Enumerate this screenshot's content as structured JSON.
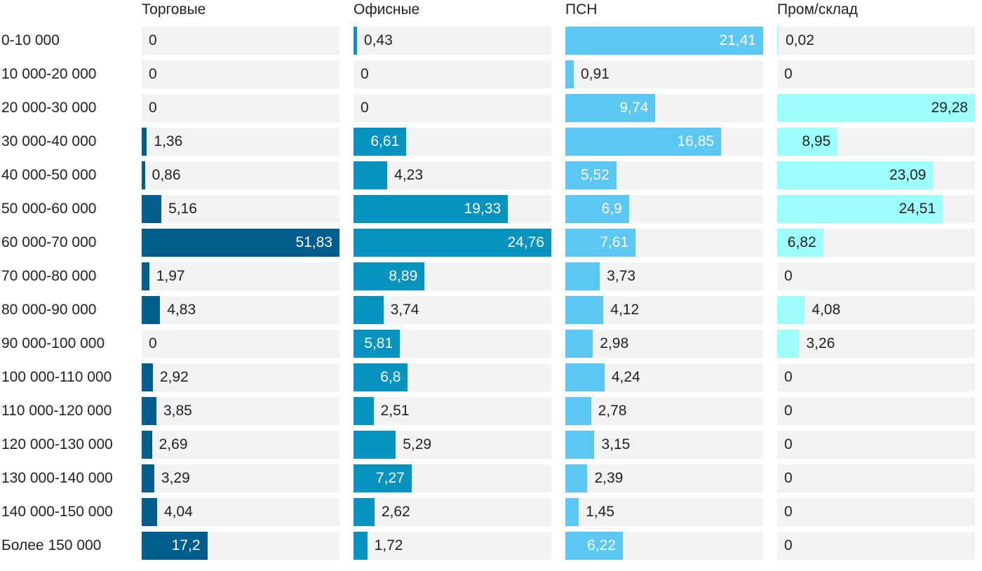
{
  "chart_data": {
    "type": "bar",
    "orientation": "horizontal",
    "layout": "small-multiples",
    "categories": [
      "0-10 000",
      "10 000-20 000",
      "20 000-30 000",
      "30 000-40 000",
      "40 000-50 000",
      "50 000-60 000",
      "60 000-70 000",
      "70 000-80 000",
      "80 000-90 000",
      "90 000-100 000",
      "100 000-110 000",
      "110 000-120 000",
      "120 000-130 000",
      "130 000-140 000",
      "140 000-150 000",
      "Более 150 000"
    ],
    "series": [
      {
        "name": "Торговые",
        "color": "#005d8c",
        "values": [
          0,
          0,
          0,
          1.36,
          0.86,
          5.16,
          51.83,
          1.97,
          4.83,
          0,
          2.92,
          3.85,
          2.69,
          3.29,
          4.04,
          17.2
        ]
      },
      {
        "name": "Офисные",
        "color": "#0993c1",
        "values": [
          0.43,
          0,
          0,
          6.61,
          4.23,
          19.33,
          24.76,
          8.89,
          3.74,
          5.81,
          6.8,
          2.51,
          5.29,
          7.27,
          2.62,
          1.72
        ]
      },
      {
        "name": "ПСН",
        "color": "#5dc7f4",
        "values": [
          21.41,
          0.91,
          9.74,
          16.85,
          5.52,
          6.9,
          7.61,
          3.73,
          4.12,
          2.98,
          4.24,
          2.78,
          3.15,
          2.39,
          1.45,
          6.22
        ]
      },
      {
        "name": "Пром/склад",
        "color": "#9dfdfd",
        "values": [
          0.02,
          0,
          29.28,
          8.95,
          23.09,
          24.51,
          6.82,
          0,
          4.08,
          3.26,
          0,
          0,
          0,
          0,
          0,
          0
        ]
      }
    ],
    "grid": false,
    "legend": "none"
  }
}
